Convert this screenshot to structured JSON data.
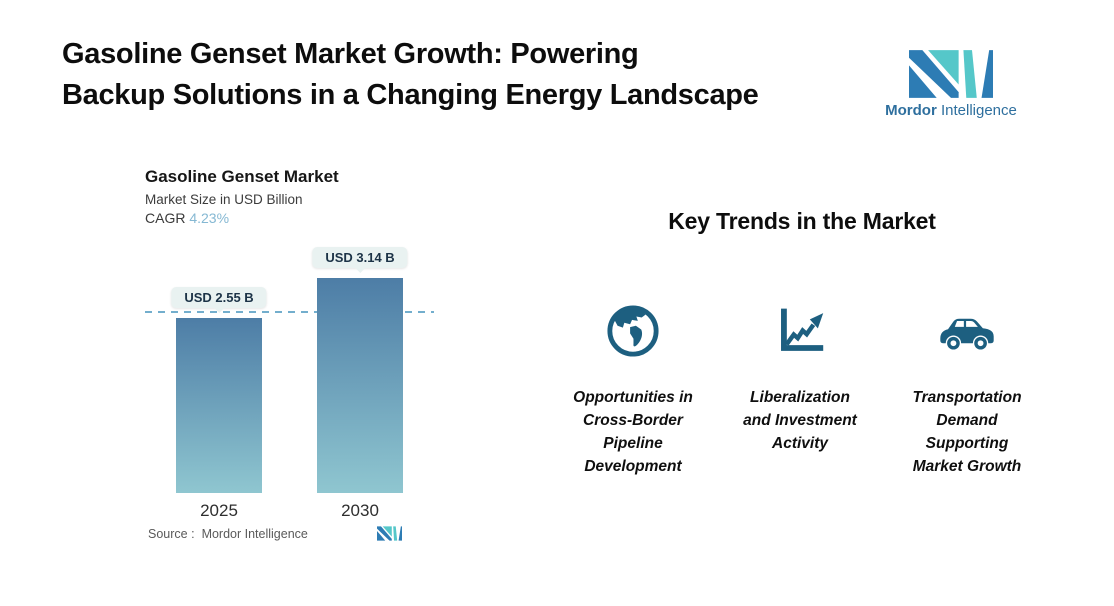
{
  "header": {
    "title_line1": "Gasoline Genset Market Growth: Powering",
    "title_line2": "Backup Solutions in a Changing Energy Landscape"
  },
  "brand": {
    "name_bold": "Mordor",
    "name_regular": "Intelligence"
  },
  "chart": {
    "title": "Gasoline Genset Market",
    "subtitle": "Market Size in USD Billion",
    "cagr_label": "CAGR",
    "cagr_value": "4.23%",
    "source_label": "Source :",
    "source_value": "Mordor Intelligence"
  },
  "chart_data": {
    "type": "bar",
    "title": "Gasoline Genset Market",
    "ylabel": "Market Size in USD Billion",
    "cagr_pct": 4.23,
    "categories": [
      "2025",
      "2030"
    ],
    "values": [
      2.55,
      3.14
    ],
    "value_labels": [
      "USD 2.55 B",
      "USD 3.14 B"
    ],
    "ylim": [
      0,
      3.14
    ],
    "reference_line_value": 2.55,
    "grid": false,
    "legend": false,
    "bar_gradient": [
      "#4d7da6",
      "#8fc6d0"
    ]
  },
  "trends": {
    "heading": "Key Trends in the Market",
    "items": [
      {
        "icon": "globe-icon",
        "lines": [
          "Opportunities in",
          "Cross-Border",
          "Pipeline",
          "Development"
        ]
      },
      {
        "icon": "line-chart-icon",
        "lines": [
          "Liberalization",
          "and Investment",
          "Activity"
        ]
      },
      {
        "icon": "car-icon",
        "lines": [
          "Transportation",
          "Demand",
          "Supporting",
          "Market Growth"
        ]
      }
    ]
  },
  "colors": {
    "logo_blue": "#2d7cb4",
    "logo_teal": "#55c7c9",
    "icon_blue": "#1d5f80",
    "cagr_accent": "#85b8d3",
    "dashed_line": "#73aecd",
    "badge_bg": "#e9f2f1",
    "bar_top": "#4d7da6",
    "bar_bottom": "#8fc6d0"
  }
}
